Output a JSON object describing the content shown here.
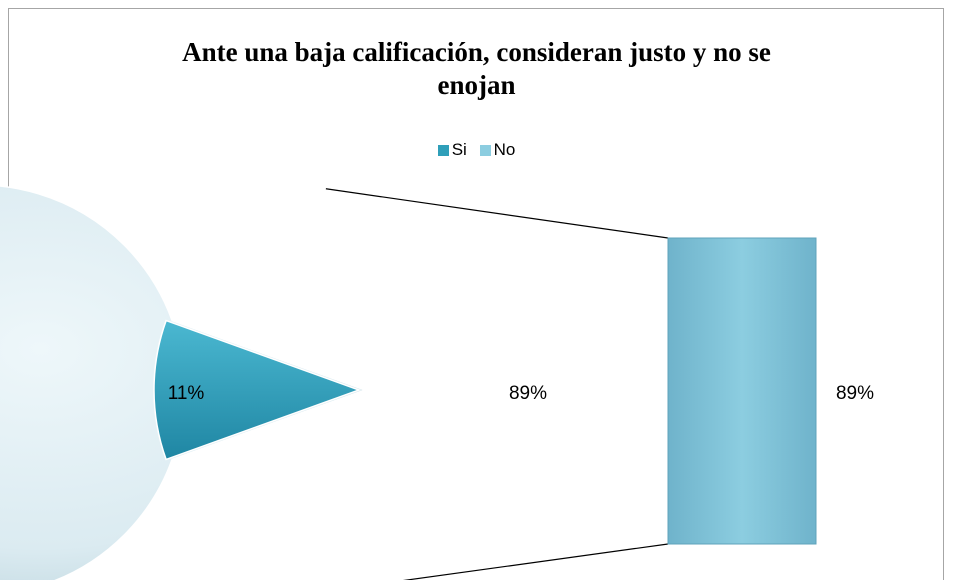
{
  "chart_data": {
    "type": "pie",
    "subtype": "bar-of-pie",
    "title_lines": [
      "Ante una baja calificación, consideran justo y no se",
      "enojan"
    ],
    "legend_position": "top",
    "series": [
      {
        "name": "Si",
        "value": 11,
        "label": "11%",
        "color": "#2f9fb9"
      },
      {
        "name": "No",
        "value": 89,
        "label": "89%",
        "color": "#dcedf3"
      }
    ],
    "secondary_bar": {
      "category": "No",
      "value": 89,
      "label": "89%",
      "color": "#7ec0d6"
    }
  }
}
